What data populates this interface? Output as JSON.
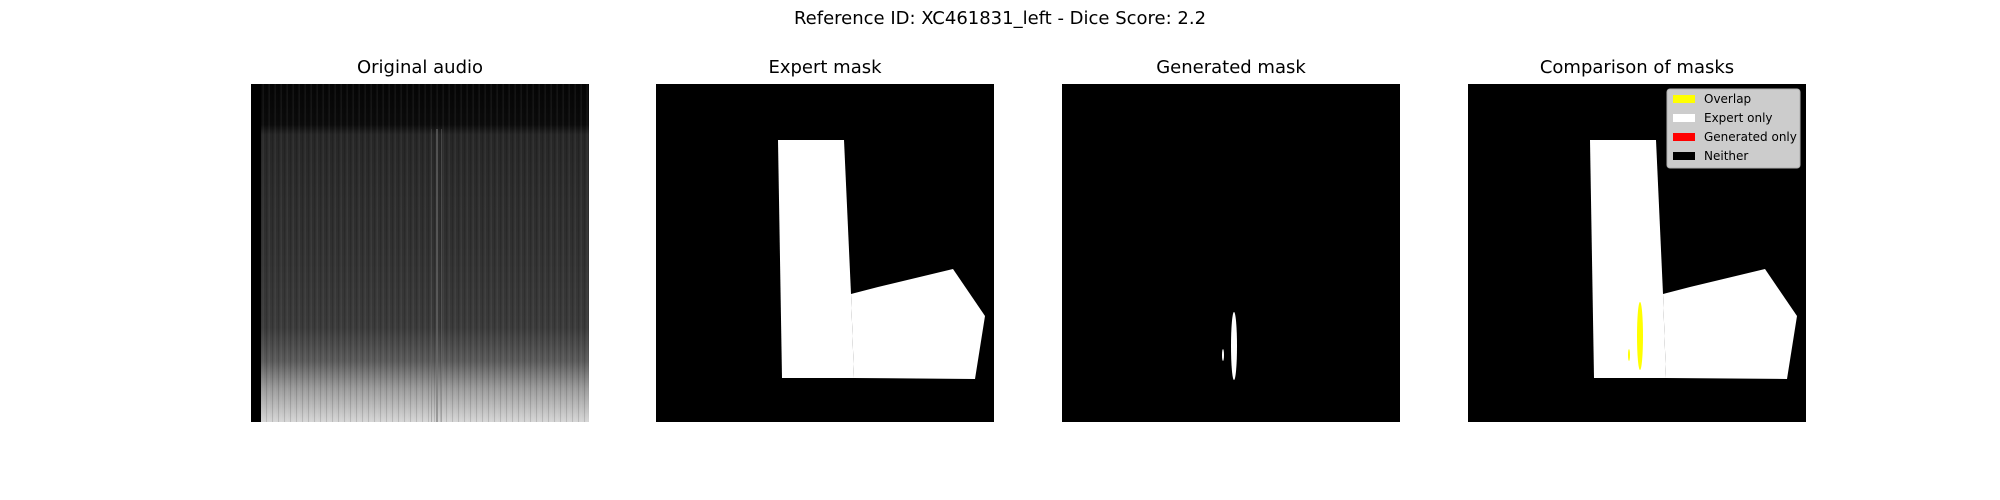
{
  "figure": {
    "title": "Reference ID: XC461831_left - Dice Score: 2.2"
  },
  "panels": [
    {
      "id": "original",
      "title": "Original audio"
    },
    {
      "id": "expert",
      "title": "Expert mask"
    },
    {
      "id": "generated",
      "title": "Generated mask"
    },
    {
      "id": "comparison",
      "title": "Comparison of masks"
    }
  ],
  "legend": {
    "items": [
      {
        "label": "Overlap",
        "color": "#ffff00"
      },
      {
        "label": "Expert only",
        "color": "#ffffff"
      },
      {
        "label": "Generated only",
        "color": "#ff0000"
      },
      {
        "label": "Neither",
        "color": "#000000"
      }
    ]
  },
  "colors": {
    "mask_background": "#000000",
    "mask_foreground": "#ffffff",
    "overlap": "#ffff00",
    "legend_background": "#cccccc"
  }
}
